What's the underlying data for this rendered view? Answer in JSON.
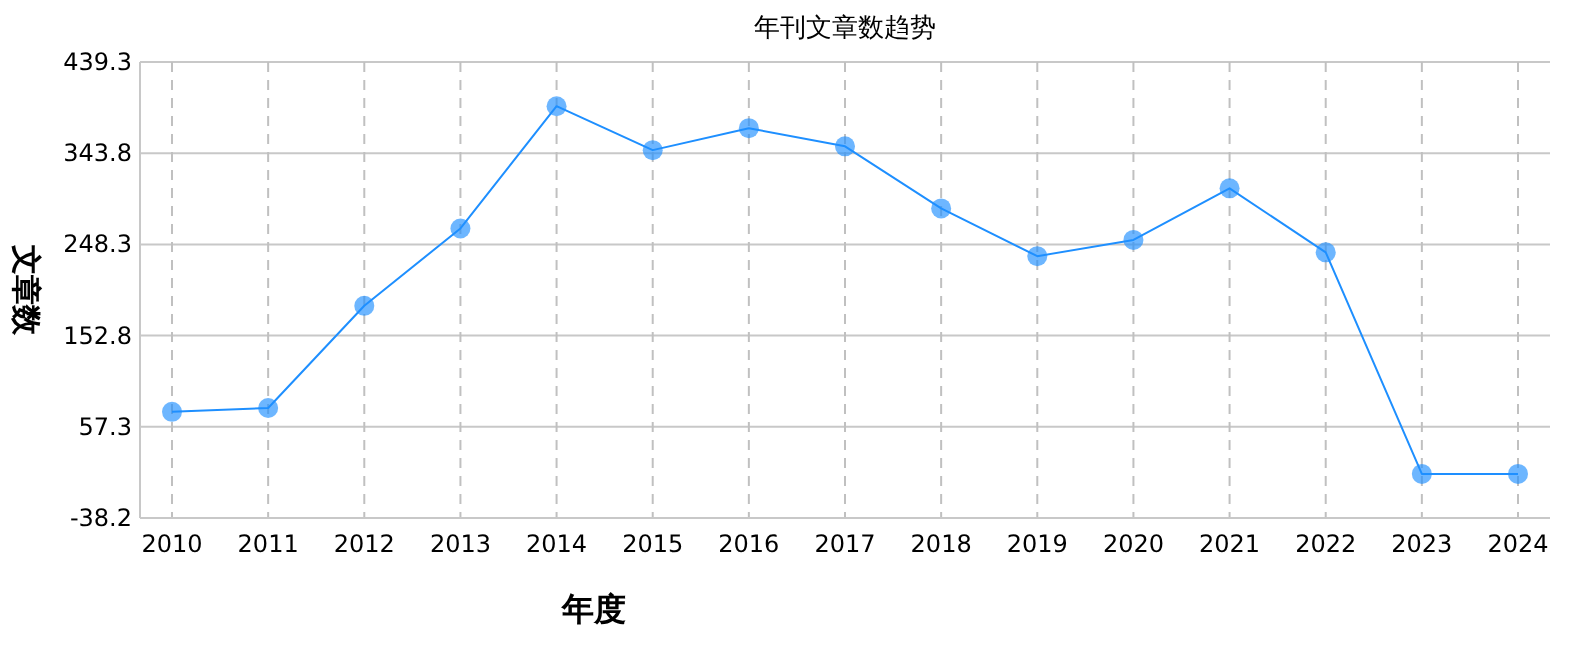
{
  "chart_data": {
    "type": "line",
    "title": "年刊文章数趋势",
    "xlabel": "年度",
    "ylabel": "文章数",
    "categories": [
      "2010",
      "2011",
      "2012",
      "2013",
      "2014",
      "2015",
      "2016",
      "2017",
      "2018",
      "2019",
      "2020",
      "2021",
      "2022",
      "2023",
      "2024"
    ],
    "series": [
      {
        "color": "#1e8fff",
        "values": [
          73,
          77,
          184,
          265,
          393,
          347,
          370,
          351,
          286,
          236,
          253,
          307,
          240,
          8,
          8
        ]
      }
    ],
    "ylim": [
      -38.2,
      439.3
    ],
    "yticks": [
      -38.2,
      57.3,
      152.8,
      248.3,
      343.8,
      439.3
    ],
    "grid": true,
    "marker": "circle",
    "line_style": "solid"
  }
}
